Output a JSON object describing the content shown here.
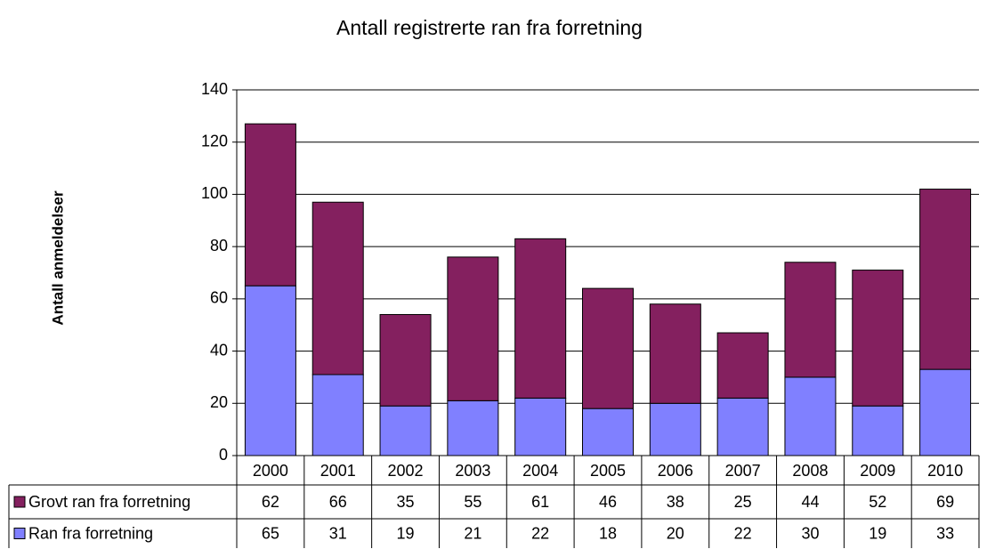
{
  "chart_data": {
    "type": "stacked_bar",
    "title": "Antall registrerte ran fra forretning",
    "y_label": "Antall anmeldelser",
    "categories": [
      "2000",
      "2001",
      "2002",
      "2003",
      "2004",
      "2005",
      "2006",
      "2007",
      "2008",
      "2009",
      "2010"
    ],
    "series": [
      {
        "name": "Grovt ran fra forretning",
        "color": "#84205f",
        "values": [
          62,
          66,
          35,
          55,
          61,
          46,
          38,
          25,
          44,
          52,
          69
        ]
      },
      {
        "name": "Ran fra forretning",
        "color": "#8080ff",
        "values": [
          65,
          31,
          19,
          21,
          22,
          18,
          20,
          22,
          30,
          19,
          33
        ]
      }
    ],
    "ylim": [
      0,
      140
    ],
    "yticks": [
      0,
      20,
      40,
      60,
      80,
      100,
      120,
      140
    ],
    "grid": true
  }
}
